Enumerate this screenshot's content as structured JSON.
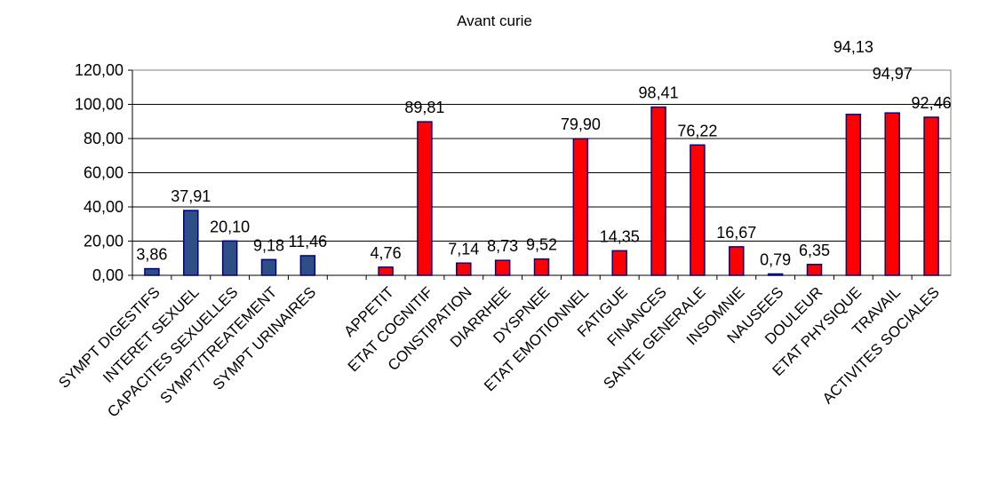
{
  "chart_data": {
    "type": "bar",
    "title": "Avant curie",
    "xlabel": "",
    "ylabel": "",
    "ylim": [
      0,
      120
    ],
    "ytick_step": 20,
    "ytick_labels": [
      "0,00",
      "20,00",
      "40,00",
      "60,00",
      "80,00",
      "100,00",
      "120,00"
    ],
    "grid": true,
    "legend": "none",
    "categories": [
      "SYMPT  DIGESTIFS",
      "INTERET SEXUEL",
      "CAPACITES SEXUELLES",
      "SYMPT/TREATEMENT",
      "SYMPT URINAIRES",
      "",
      "APPETIT",
      "ETAT COGNITIF",
      "CONSTIPATION",
      "DIARRHEE",
      "DYSPNEE",
      "ETAT EMOTIONNEL",
      "FATIGUE",
      "FINANCES",
      "SANTE GENERALE",
      "INSOMNIE",
      "NAUSEES",
      "DOULEUR",
      "ETAT PHYSIQUE",
      "TRAVAIL",
      "ACTIVITES SOCIALES"
    ],
    "values": [
      3.86,
      37.91,
      20.1,
      9.18,
      11.46,
      null,
      4.76,
      89.81,
      7.14,
      8.73,
      9.52,
      79.9,
      14.35,
      98.41,
      76.22,
      16.67,
      0.79,
      6.35,
      94.13,
      94.97,
      92.46
    ],
    "data_labels": [
      "3,86",
      "37,91",
      "20,10",
      "9,18",
      "11,46",
      "",
      "4,76",
      "89,81",
      "7,14",
      "8,73",
      "9,52",
      "79,90",
      "14,35",
      "98,41",
      "76,22",
      "16,67",
      "0,79",
      "6,35",
      "94,13",
      "94,97",
      "92,46"
    ],
    "colors": [
      "#2e4f86",
      "#2e4f86",
      "#2e4f86",
      "#2e4f86",
      "#2e4f86",
      "",
      "#ff0000",
      "#ff0000",
      "#ff0000",
      "#ff0000",
      "#ff0000",
      "#ff0000",
      "#ff0000",
      "#ff0000",
      "#ff0000",
      "#ff0000",
      "#ff0000",
      "#ff0000",
      "#ff0000",
      "#ff0000",
      "#ff0000"
    ],
    "bar_outline_color": "#000080"
  }
}
